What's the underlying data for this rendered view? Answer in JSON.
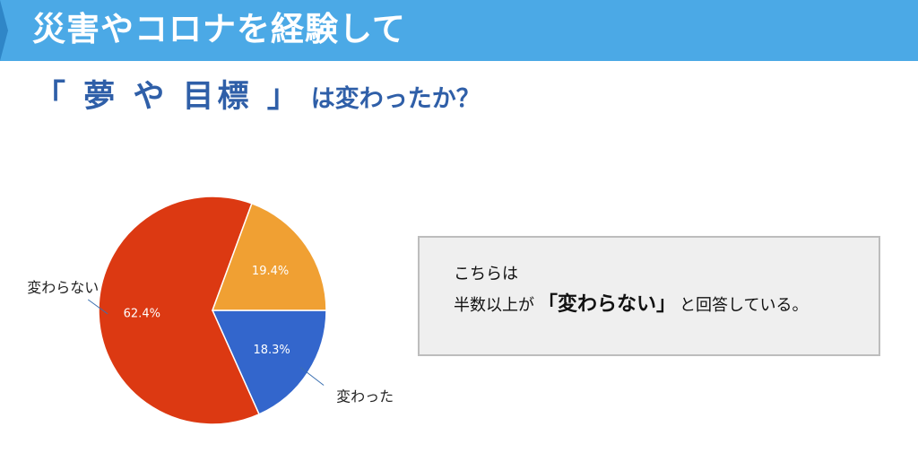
{
  "banner": {
    "title": "災害やコロナを経験して"
  },
  "heading": {
    "quoted": "「 夢 や 目標 」",
    "rest": "は変わったか？"
  },
  "note": {
    "line1": "こちらは",
    "line2_prefix": "半数以上が",
    "line2_emphasis": "「変わらない」",
    "line2_suffix": "と回答している。"
  },
  "colors": {
    "banner": "#4ba9e6",
    "heading": "#2f5fa8",
    "changed": "#3366cc",
    "unchanged": "#dc3912",
    "other": "#ff9900"
  },
  "chart_data": {
    "type": "pie",
    "slices": [
      {
        "label": "変わった",
        "value": 18.3,
        "display": "18.3%",
        "color": "#3366cc"
      },
      {
        "label": "変わらない",
        "value": 62.4,
        "display": "62.4%",
        "color": "#dc3912"
      },
      {
        "label": "",
        "value": 19.4,
        "display": "19.4%",
        "color": "#f0a033"
      }
    ],
    "start": "3 o'clock",
    "direction": "clockwise"
  }
}
